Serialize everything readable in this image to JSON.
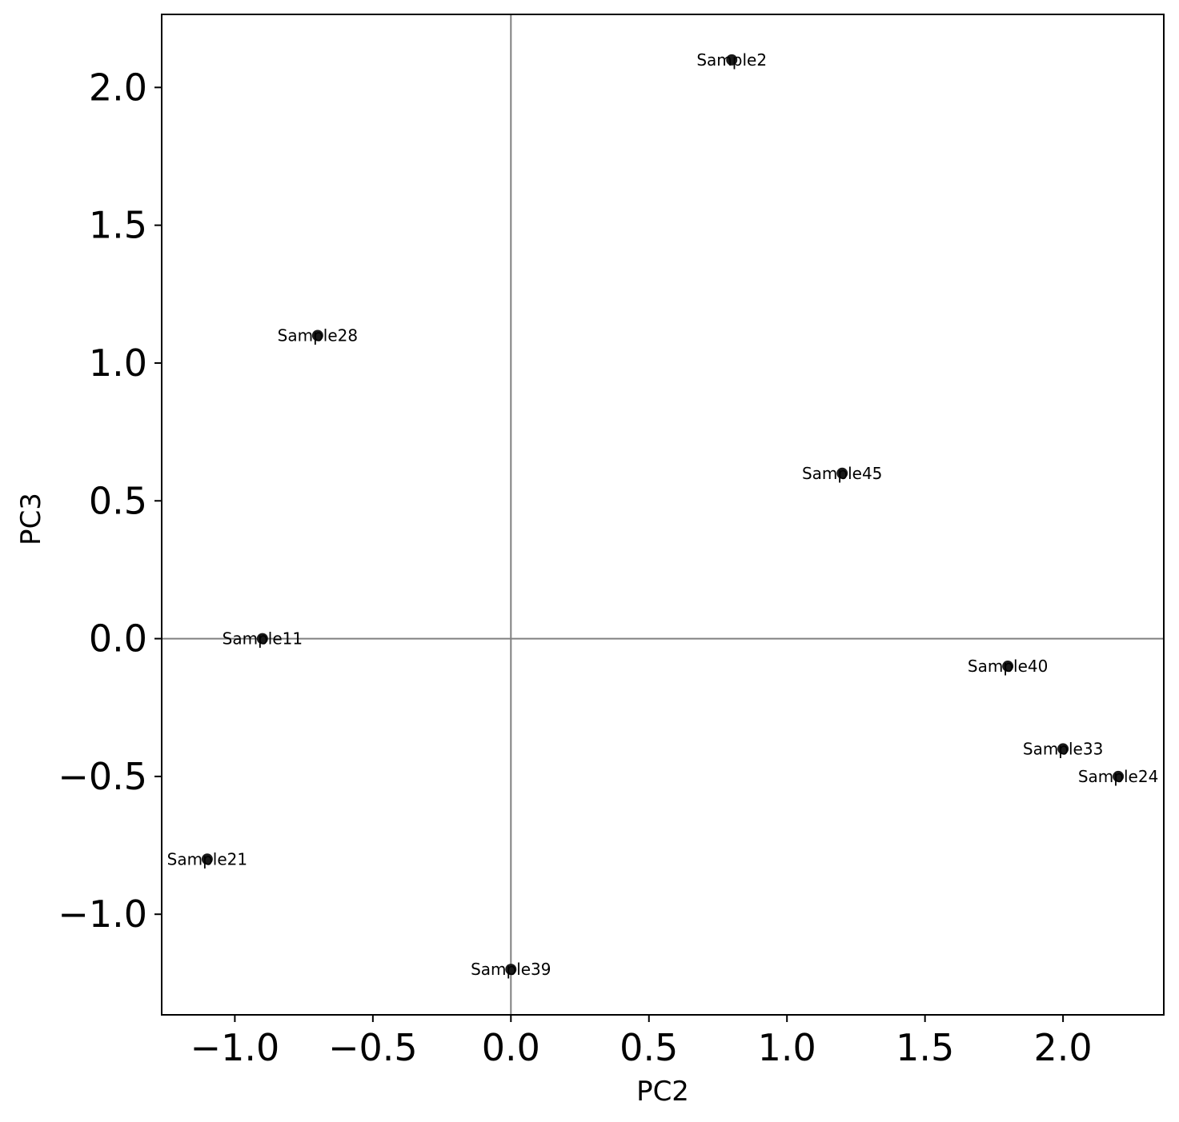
{
  "chart_data": {
    "type": "scatter",
    "title": "",
    "xlabel": "PC2",
    "ylabel": "PC3",
    "xlim": [
      -1.265,
      2.365
    ],
    "ylim": [
      -1.365,
      2.265
    ],
    "xticks": [
      -1.0,
      -0.5,
      0.0,
      0.5,
      1.0,
      1.5,
      2.0
    ],
    "yticks": [
      -1.0,
      -0.5,
      0.0,
      0.5,
      1.0,
      1.5,
      2.0
    ],
    "xtick_labels": [
      "−1.0",
      "−0.5",
      "0.0",
      "0.5",
      "1.0",
      "1.5",
      "2.0"
    ],
    "ytick_labels": [
      "−1.0",
      "−0.5",
      "0.0",
      "0.5",
      "1.0",
      "1.5",
      "2.0"
    ],
    "reference_lines": {
      "x": 0,
      "y": 0,
      "color": "#808080"
    },
    "grid": false,
    "point_color": "#1a1a1a",
    "points": [
      {
        "label": "Sample2",
        "x": 0.8,
        "y": 2.1
      },
      {
        "label": "Sample28",
        "x": -0.7,
        "y": 1.1
      },
      {
        "label": "Sample45",
        "x": 1.2,
        "y": 0.6
      },
      {
        "label": "Sample11",
        "x": -0.9,
        "y": 0.0
      },
      {
        "label": "Sample40",
        "x": 1.8,
        "y": -0.1
      },
      {
        "label": "Sample33",
        "x": 2.0,
        "y": -0.4
      },
      {
        "label": "Sample24",
        "x": 2.2,
        "y": -0.5
      },
      {
        "label": "Sample21",
        "x": -1.1,
        "y": -0.8
      },
      {
        "label": "Sample39",
        "x": 0.0,
        "y": -1.2
      }
    ]
  }
}
